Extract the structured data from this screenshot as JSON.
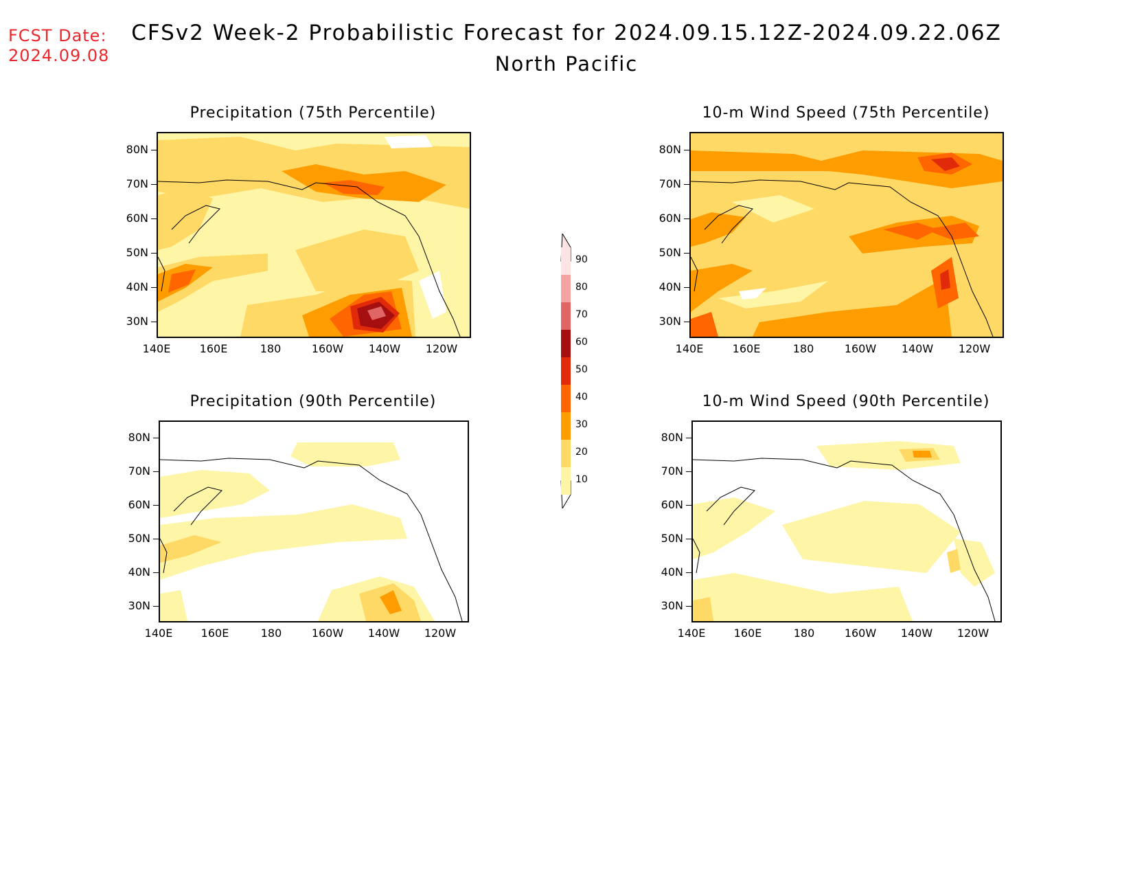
{
  "forecast_date": {
    "label": "FCST Date:",
    "value": "2024.09.08"
  },
  "title": "CFSv2 Week-2 Probabilistic Forecast for 2024.09.15.12Z-2024.09.22.06Z",
  "region": "North Pacific",
  "panels": [
    {
      "title": "Precipitation (75th Percentile)"
    },
    {
      "title": "10-m Wind Speed (75th Percentile)"
    },
    {
      "title": "Precipitation (90th Percentile)"
    },
    {
      "title": "10-m Wind Speed (90th Percentile)"
    }
  ],
  "lat_labels": [
    "80N",
    "70N",
    "60N",
    "50N",
    "40N",
    "30N"
  ],
  "lon_labels": [
    "140E",
    "160E",
    "180",
    "160W",
    "140W",
    "120W"
  ],
  "colorbar": {
    "levels": [
      "90",
      "80",
      "70",
      "60",
      "50",
      "40",
      "30",
      "20",
      "10"
    ],
    "colors": [
      "#fde3e3",
      "#f4a3a3",
      "#e06666",
      "#a50f0f",
      "#e12a0a",
      "#ff6600",
      "#ff9d00",
      "#ffd966",
      "#fff5a6"
    ]
  }
}
